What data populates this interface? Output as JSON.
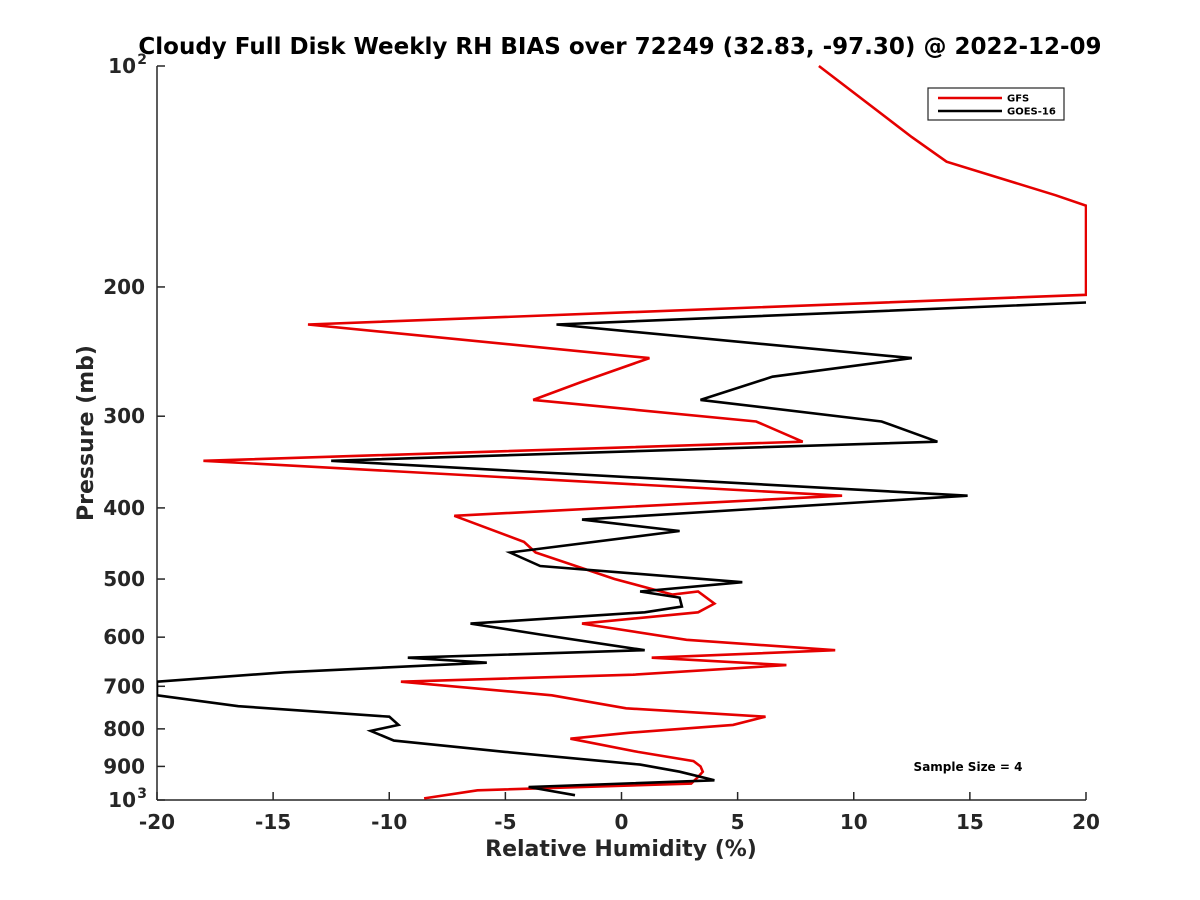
{
  "chart_data": {
    "type": "line",
    "title": "Cloudy Full Disk Weekly RH BIAS over 72249 (32.83, -97.30) @ 2022-12-09",
    "xlabel": "Relative Humidity (%)",
    "ylabel": "Pressure (mb)",
    "xlim": [
      -20,
      20
    ],
    "ylim": [
      100,
      1000
    ],
    "y_scale": "log",
    "y_reversed": true,
    "grid": false,
    "legend_position": "top-right",
    "x_ticks": [
      "-20",
      "-15",
      "-10",
      "-5",
      "0",
      "5",
      "10",
      "15",
      "20"
    ],
    "y_ticks": [
      {
        "value": 100,
        "label": "10",
        "exponent": "2"
      },
      {
        "value": 200,
        "label": "200"
      },
      {
        "value": 300,
        "label": "300"
      },
      {
        "value": 400,
        "label": "400"
      },
      {
        "value": 500,
        "label": "500"
      },
      {
        "value": 600,
        "label": "600"
      },
      {
        "value": 700,
        "label": "700"
      },
      {
        "value": 800,
        "label": "800"
      },
      {
        "value": 900,
        "label": "900"
      },
      {
        "value": 1000,
        "label": "10",
        "exponent": "3"
      }
    ],
    "annotation": "Sample Size = 4",
    "series": [
      {
        "name": "GFS",
        "color": "#e50000",
        "points": [
          [
            8.5,
            100
          ],
          [
            12.5,
            125
          ],
          [
            14,
            135
          ],
          [
            18.7,
            150
          ],
          [
            20,
            155
          ],
          [
            20,
            205
          ],
          [
            -13.5,
            225
          ],
          [
            1.2,
            250
          ],
          [
            -1.8,
            270
          ],
          [
            -3.8,
            285
          ],
          [
            5.8,
            305
          ],
          [
            7.8,
            325
          ],
          [
            -18.0,
            345
          ],
          [
            9.5,
            385
          ],
          [
            -7.2,
            410
          ],
          [
            -4.2,
            445
          ],
          [
            -3.7,
            460
          ],
          [
            -0.3,
            500
          ],
          [
            2.2,
            525
          ],
          [
            3.3,
            520
          ],
          [
            4.0,
            540
          ],
          [
            3.3,
            555
          ],
          [
            -1.7,
            575
          ],
          [
            2.8,
            605
          ],
          [
            9.2,
            625
          ],
          [
            1.3,
            640
          ],
          [
            7.1,
            655
          ],
          [
            0.5,
            675
          ],
          [
            -9.5,
            690
          ],
          [
            -3.0,
            720
          ],
          [
            0.2,
            750
          ],
          [
            6.2,
            770
          ],
          [
            4.8,
            790
          ],
          [
            0.3,
            810
          ],
          [
            -2.2,
            825
          ],
          [
            0.7,
            860
          ],
          [
            3.1,
            885
          ],
          [
            3.4,
            900
          ],
          [
            3.5,
            915
          ],
          [
            3.3,
            930
          ],
          [
            3.0,
            950
          ],
          [
            -6.2,
            970
          ],
          [
            -8.5,
            995
          ]
        ]
      },
      {
        "name": "GOES-16",
        "color": "#000000",
        "points": [
          [
            20,
            210
          ],
          [
            -2.8,
            225
          ],
          [
            12.5,
            250
          ],
          [
            6.5,
            265
          ],
          [
            3.4,
            285
          ],
          [
            11.2,
            305
          ],
          [
            13.6,
            325
          ],
          [
            -12.5,
            345
          ],
          [
            14.9,
            385
          ],
          [
            -1.7,
            415
          ],
          [
            2.5,
            430
          ],
          [
            -4.8,
            460
          ],
          [
            -3.5,
            480
          ],
          [
            5.2,
            505
          ],
          [
            0.8,
            520
          ],
          [
            2.5,
            530
          ],
          [
            2.6,
            545
          ],
          [
            1.0,
            555
          ],
          [
            -6.5,
            575
          ],
          [
            -3.5,
            595
          ],
          [
            1.0,
            625
          ],
          [
            -9.2,
            640
          ],
          [
            -5.8,
            650
          ],
          [
            -14.5,
            670
          ],
          [
            -20,
            690
          ],
          [
            -20,
            720
          ],
          [
            -16.5,
            745
          ],
          [
            -10.0,
            770
          ],
          [
            -9.6,
            790
          ],
          [
            -10.8,
            805
          ],
          [
            -9.8,
            830
          ],
          [
            -5.0,
            860
          ],
          [
            0.8,
            895
          ],
          [
            2.5,
            915
          ],
          [
            4.0,
            940
          ],
          [
            -4.0,
            960
          ],
          [
            -2.0,
            985
          ]
        ]
      }
    ]
  }
}
